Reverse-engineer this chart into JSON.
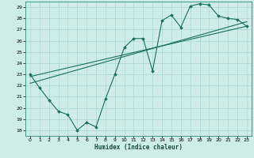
{
  "xlabel": "Humidex (Indice chaleur)",
  "bg_color": "#cdecea",
  "grid_color": "#aed8d4",
  "line_color": "#1a6e62",
  "xlim": [
    -0.5,
    23.5
  ],
  "ylim": [
    17.5,
    29.5
  ],
  "xticks": [
    0,
    1,
    2,
    3,
    4,
    5,
    6,
    7,
    8,
    9,
    10,
    11,
    12,
    13,
    14,
    15,
    16,
    17,
    18,
    19,
    20,
    21,
    22,
    23
  ],
  "yticks": [
    18,
    19,
    20,
    21,
    22,
    23,
    24,
    25,
    26,
    27,
    28,
    29
  ],
  "line1_x": [
    0,
    23
  ],
  "line1_y": [
    22.8,
    27.3
  ],
  "line2_x": [
    0,
    23
  ],
  "line2_y": [
    22.2,
    27.7
  ],
  "line3_x": [
    0,
    1,
    2,
    3,
    4,
    5,
    6,
    7,
    8,
    9,
    10,
    11,
    12,
    13,
    14,
    15,
    16,
    17,
    18,
    19,
    20,
    21,
    22,
    23
  ],
  "line3_y": [
    23.0,
    21.8,
    20.7,
    19.7,
    19.4,
    18.0,
    18.7,
    18.3,
    20.8,
    23.0,
    25.4,
    26.2,
    26.2,
    23.3,
    27.8,
    28.3,
    27.2,
    29.1,
    29.3,
    29.2,
    28.2,
    28.0,
    27.9,
    27.3
  ]
}
